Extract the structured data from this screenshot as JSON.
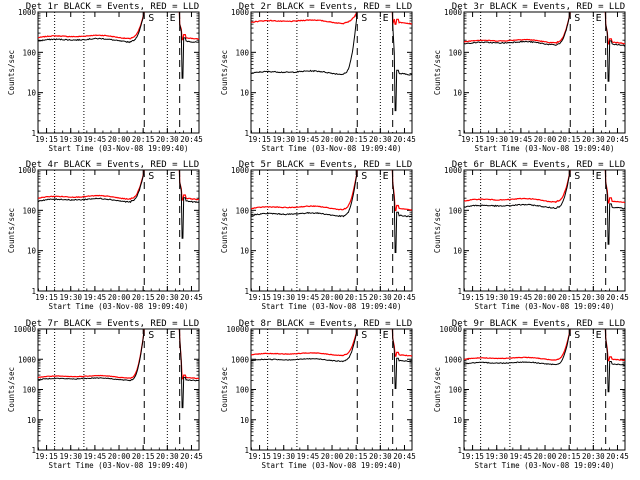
{
  "chart_data": {
    "type": "line",
    "layout": "3x3 grid",
    "x_tick_labels": [
      "19:15",
      "19:30",
      "19:45",
      "20:00",
      "20:15",
      "20:30",
      "20:45"
    ],
    "xlabel": "Start Time (03-Nov-08 19:09:40)",
    "ylabel": "Counts/sec",
    "y_scale": "log",
    "marker_labels": {
      "start": "S",
      "end": "E"
    },
    "series_colors": {
      "events": "#000000",
      "lld": "#ff0000"
    },
    "panels": [
      {
        "title": "Det 1r BLACK = Events, RED = LLD",
        "ylim": [
          1,
          1000
        ],
        "y_tick_labels": [
          "1",
          "10",
          "100",
          "1000"
        ],
        "events_level": 190,
        "lld_level": 230,
        "lld_peak": 1000
      },
      {
        "title": "Det 2r BLACK = Events, RED = LLD",
        "ylim": [
          1,
          1000
        ],
        "y_tick_labels": [
          "1",
          "10",
          "100",
          "1000"
        ],
        "events_level": 30,
        "lld_level": 550,
        "lld_peak": 1000
      },
      {
        "title": "Det 3r BLACK = Events, RED = LLD",
        "ylim": [
          1,
          1000
        ],
        "y_tick_labels": [
          "1",
          "10",
          "100",
          "1000"
        ],
        "events_level": 160,
        "lld_level": 180,
        "lld_peak": 1000
      },
      {
        "title": "Det 4r BLACK = Events, RED = LLD",
        "ylim": [
          1,
          1000
        ],
        "y_tick_labels": [
          "1",
          "10",
          "100",
          "1000"
        ],
        "events_level": 170,
        "lld_level": 200,
        "lld_peak": 1000
      },
      {
        "title": "Det 5r BLACK = Events, RED = LLD",
        "ylim": [
          1,
          1000
        ],
        "y_tick_labels": [
          "1",
          "10",
          "100",
          "1000"
        ],
        "events_level": 75,
        "lld_level": 110,
        "lld_peak": 1000
      },
      {
        "title": "Det 6r BLACK = Events, RED = LLD",
        "ylim": [
          1,
          1000
        ],
        "y_tick_labels": [
          "1",
          "10",
          "100",
          "1000"
        ],
        "events_level": 120,
        "lld_level": 170,
        "lld_peak": 1000
      },
      {
        "title": "Det 7r BLACK = Events, RED = LLD",
        "ylim": [
          1,
          10000
        ],
        "y_tick_labels": [
          "1",
          "10",
          "100",
          "1000",
          "10000"
        ],
        "events_level": 210,
        "lld_level": 250,
        "lld_peak": 10000
      },
      {
        "title": "Det 8r BLACK = Events, RED = LLD",
        "ylim": [
          1,
          10000
        ],
        "y_tick_labels": [
          "1",
          "10",
          "100",
          "1000",
          "10000"
        ],
        "events_level": 900,
        "lld_level": 1400,
        "lld_peak": 10000
      },
      {
        "title": "Det 9r BLACK = Events, RED = LLD",
        "ylim": [
          1,
          10000
        ],
        "y_tick_labels": [
          "1",
          "10",
          "100",
          "1000",
          "10000"
        ],
        "events_level": 700,
        "lld_level": 1000,
        "lld_peak": 10000
      }
    ]
  }
}
